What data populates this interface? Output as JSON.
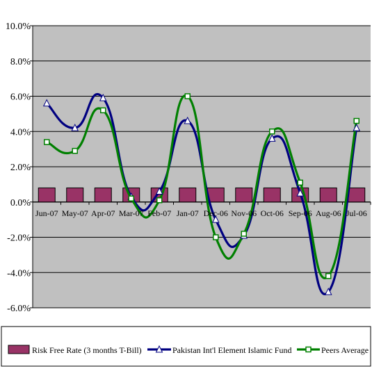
{
  "chart_data": {
    "type": "line",
    "title": "",
    "xlabel": "",
    "ylabel": "",
    "categories": [
      "Jun-07",
      "May-07",
      "Apr-07",
      "Mar-07",
      "Feb-07",
      "Jan-07",
      "Dec-06",
      "Nov-06",
      "Oct-06",
      "Sep-06",
      "Aug-06",
      "Jul-06"
    ],
    "ylim": [
      -6.0,
      10.0
    ],
    "yticks": [
      "10.0%",
      "8.0%",
      "6.0%",
      "4.0%",
      "2.0%",
      "0.0%",
      "-2.0%",
      "-4.0%",
      "-6.0%"
    ],
    "grid": true,
    "legend_position": "bottom",
    "series": [
      {
        "name": "Risk Free Rate (3 months T-Bill)",
        "kind": "bar",
        "color": "#993366",
        "values": [
          0.8,
          0.8,
          0.8,
          0.8,
          0.8,
          0.8,
          0.8,
          0.8,
          0.8,
          0.8,
          0.8,
          0.8
        ]
      },
      {
        "name": "Pakistan Int'l Element Islamic Fund",
        "kind": "line",
        "marker": "triangle",
        "color": "#000080",
        "values": [
          5.6,
          4.2,
          5.9,
          0.3,
          0.6,
          4.6,
          -1.0,
          -1.9,
          3.6,
          0.5,
          -5.1,
          4.2
        ]
      },
      {
        "name": "Peers Average",
        "kind": "line",
        "marker": "square",
        "color": "#008000",
        "values": [
          3.4,
          2.9,
          5.2,
          0.2,
          0.1,
          6.0,
          -2.0,
          -1.8,
          4.0,
          1.1,
          -4.2,
          4.6
        ]
      }
    ]
  }
}
